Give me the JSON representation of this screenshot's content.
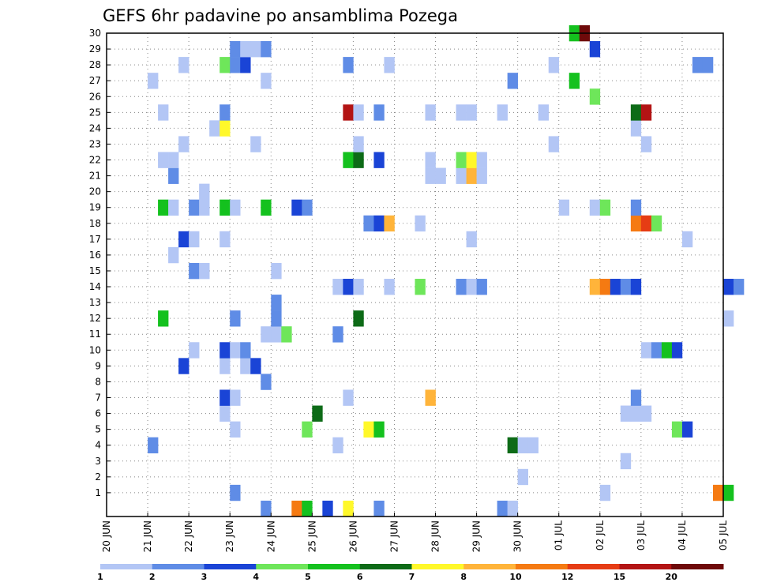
{
  "chart_data": {
    "type": "heatmap",
    "title": "GEFS 6hr padavine po ansamblima Pozega",
    "x_ticks": [
      "20 JUN",
      "21 JUN",
      "22 JUN",
      "23 JUN",
      "24 JUN",
      "25 JUN",
      "26 JUN",
      "27 JUN",
      "28 JUN",
      "29 JUN",
      "30 JUN",
      "01 JUL",
      "02 JUL",
      "03 JUL",
      "04 JUL",
      "05 JUL"
    ],
    "x_range": [
      "20 JUN 00Z",
      "05 JUL 00Z"
    ],
    "y_ticks": [
      "1",
      "2",
      "3",
      "4",
      "5",
      "6",
      "7",
      "8",
      "9",
      "10",
      "11",
      "12",
      "13",
      "14",
      "15",
      "16",
      "17",
      "18",
      "19",
      "20",
      "21",
      "22",
      "23",
      "24",
      "25",
      "26",
      "27",
      "28",
      "29",
      "30"
    ],
    "y_range": [
      0,
      30
    ],
    "grid": true,
    "colorbar": {
      "labels": [
        "1",
        "2",
        "3",
        "4",
        "5",
        "6",
        "7",
        "8",
        "10",
        "12",
        "15",
        "20"
      ],
      "colors": [
        "#b3c6f5",
        "#5f8ce6",
        "#1a44d6",
        "#6ee65a",
        "#14c11e",
        "#0d6b17",
        "#fff82a",
        "#ffb43a",
        "#f57a12",
        "#e63c14",
        "#b31414",
        "#6e0a0a"
      ]
    },
    "cells": [
      {
        "m": 1,
        "t": "23 JUN 00Z",
        "c": 2
      },
      {
        "m": 1,
        "t": "02 JUL 00Z",
        "c": 1
      },
      {
        "m": 1,
        "t": "04 JUL 18Z",
        "c": 9
      },
      {
        "m": 1,
        "t": "05 JUL 00Z",
        "c": 5
      },
      {
        "m": 2,
        "t": "30 JUN 00Z",
        "c": 1
      },
      {
        "m": 3,
        "t": "02 JUL 12Z",
        "c": 1
      },
      {
        "m": 4,
        "t": "21 JUN 00Z",
        "c": 2
      },
      {
        "m": 4,
        "t": "25 JUN 12Z",
        "c": 1
      },
      {
        "m": 4,
        "t": "29 JUN 18Z",
        "c": 6
      },
      {
        "m": 4,
        "t": "30 JUN 00Z",
        "c": 1
      },
      {
        "m": 4,
        "t": "30 JUN 06Z",
        "c": 1
      },
      {
        "m": 5,
        "t": "23 JUN 00Z",
        "c": 1
      },
      {
        "m": 5,
        "t": "24 JUN 18Z",
        "c": 4
      },
      {
        "m": 5,
        "t": "26 JUN 06Z",
        "c": 7
      },
      {
        "m": 5,
        "t": "26 JUN 12Z",
        "c": 5
      },
      {
        "m": 5,
        "t": "03 JUL 18Z",
        "c": 4
      },
      {
        "m": 5,
        "t": "04 JUL 00Z",
        "c": 3
      },
      {
        "m": 6,
        "t": "22 JUN 18Z",
        "c": 1
      },
      {
        "m": 6,
        "t": "25 JUN 00Z",
        "c": 6
      },
      {
        "m": 6,
        "t": "02 JUL 12Z",
        "c": 1
      },
      {
        "m": 6,
        "t": "02 JUL 18Z",
        "c": 1
      },
      {
        "m": 6,
        "t": "03 JUL 00Z",
        "c": 1
      },
      {
        "m": 7,
        "t": "22 JUN 18Z",
        "c": 3
      },
      {
        "m": 7,
        "t": "23 JUN 00Z",
        "c": 1
      },
      {
        "m": 7,
        "t": "25 JUN 18Z",
        "c": 1
      },
      {
        "m": 7,
        "t": "27 JUN 18Z",
        "c": 8
      },
      {
        "m": 7,
        "t": "02 JUL 18Z",
        "c": 2
      },
      {
        "m": 8,
        "t": "23 JUN 18Z",
        "c": 2
      },
      {
        "m": 9,
        "t": "21 JUN 18Z",
        "c": 3
      },
      {
        "m": 9,
        "t": "22 JUN 18Z",
        "c": 1
      },
      {
        "m": 9,
        "t": "23 JUN 06Z",
        "c": 1
      },
      {
        "m": 9,
        "t": "23 JUN 12Z",
        "c": 3
      },
      {
        "m": 10,
        "t": "22 JUN 00Z",
        "c": 1
      },
      {
        "m": 10,
        "t": "22 JUN 18Z",
        "c": 3
      },
      {
        "m": 10,
        "t": "23 JUN 00Z",
        "c": 1
      },
      {
        "m": 10,
        "t": "23 JUN 06Z",
        "c": 2
      },
      {
        "m": 10,
        "t": "03 JUL 00Z",
        "c": 1
      },
      {
        "m": 10,
        "t": "03 JUL 06Z",
        "c": 2
      },
      {
        "m": 10,
        "t": "03 JUL 12Z",
        "c": 5
      },
      {
        "m": 10,
        "t": "03 JUL 18Z",
        "c": 3
      },
      {
        "m": 11,
        "t": "23 JUN 18Z",
        "c": 1
      },
      {
        "m": 11,
        "t": "24 JUN 00Z",
        "c": 1
      },
      {
        "m": 11,
        "t": "24 JUN 06Z",
        "c": 4
      },
      {
        "m": 11,
        "t": "25 JUN 12Z",
        "c": 2
      },
      {
        "m": 12,
        "t": "21 JUN 06Z",
        "c": 5
      },
      {
        "m": 12,
        "t": "23 JUN 00Z",
        "c": 2
      },
      {
        "m": 12,
        "t": "24 JUN 00Z",
        "c": 2
      },
      {
        "m": 12,
        "t": "26 JUN 00Z",
        "c": 6
      },
      {
        "m": 12,
        "t": "05 JUL 00Z",
        "c": 1
      },
      {
        "m": 13,
        "t": "24 JUN 00Z",
        "c": 2
      },
      {
        "m": 14,
        "t": "25 JUN 12Z",
        "c": 1
      },
      {
        "m": 14,
        "t": "25 JUN 18Z",
        "c": 3
      },
      {
        "m": 14,
        "t": "26 JUN 00Z",
        "c": 1
      },
      {
        "m": 14,
        "t": "26 JUN 18Z",
        "c": 1
      },
      {
        "m": 14,
        "t": "27 JUN 12Z",
        "c": 4
      },
      {
        "m": 14,
        "t": "28 JUN 12Z",
        "c": 2
      },
      {
        "m": 14,
        "t": "28 JUN 18Z",
        "c": 1
      },
      {
        "m": 14,
        "t": "29 JUN 00Z",
        "c": 2
      },
      {
        "m": 14,
        "t": "01 JUL 18Z",
        "c": 8
      },
      {
        "m": 14,
        "t": "02 JUL 00Z",
        "c": 9
      },
      {
        "m": 14,
        "t": "02 JUL 06Z",
        "c": 3
      },
      {
        "m": 14,
        "t": "02 JUL 12Z",
        "c": 2
      },
      {
        "m": 14,
        "t": "02 JUL 18Z",
        "c": 3
      },
      {
        "m": 14,
        "t": "05 JUL 00Z",
        "c": 3
      },
      {
        "m": 14,
        "t": "05 JUL 06Z",
        "c": 2
      },
      {
        "m": 15,
        "t": "22 JUN 00Z",
        "c": 2
      },
      {
        "m": 15,
        "t": "22 JUN 06Z",
        "c": 1
      },
      {
        "m": 15,
        "t": "24 JUN 00Z",
        "c": 1
      },
      {
        "m": 16,
        "t": "21 JUN 12Z",
        "c": 1
      },
      {
        "m": 17,
        "t": "21 JUN 18Z",
        "c": 3
      },
      {
        "m": 17,
        "t": "22 JUN 00Z",
        "c": 1
      },
      {
        "m": 17,
        "t": "22 JUN 18Z",
        "c": 1
      },
      {
        "m": 17,
        "t": "28 JUN 18Z",
        "c": 1
      },
      {
        "m": 17,
        "t": "04 JUL 00Z",
        "c": 1
      },
      {
        "m": 18,
        "t": "26 JUN 06Z",
        "c": 2
      },
      {
        "m": 18,
        "t": "26 JUN 12Z",
        "c": 3
      },
      {
        "m": 18,
        "t": "26 JUN 18Z",
        "c": 8
      },
      {
        "m": 18,
        "t": "27 JUN 12Z",
        "c": 1
      },
      {
        "m": 18,
        "t": "02 JUL 18Z",
        "c": 9
      },
      {
        "m": 18,
        "t": "03 JUL 00Z",
        "c": 10
      },
      {
        "m": 18,
        "t": "03 JUL 06Z",
        "c": 4
      },
      {
        "m": 19,
        "t": "21 JUN 06Z",
        "c": 5
      },
      {
        "m": 19,
        "t": "21 JUN 12Z",
        "c": 1
      },
      {
        "m": 19,
        "t": "22 JUN 00Z",
        "c": 2
      },
      {
        "m": 19,
        "t": "22 JUN 06Z",
        "c": 1
      },
      {
        "m": 19,
        "t": "22 JUN 18Z",
        "c": 5
      },
      {
        "m": 19,
        "t": "23 JUN 00Z",
        "c": 1
      },
      {
        "m": 19,
        "t": "23 JUN 18Z",
        "c": 5
      },
      {
        "m": 19,
        "t": "24 JUN 12Z",
        "c": 3
      },
      {
        "m": 19,
        "t": "24 JUN 18Z",
        "c": 2
      },
      {
        "m": 19,
        "t": "01 JUL 00Z",
        "c": 1
      },
      {
        "m": 19,
        "t": "01 JUL 18Z",
        "c": 1
      },
      {
        "m": 19,
        "t": "02 JUL 00Z",
        "c": 4
      },
      {
        "m": 19,
        "t": "02 JUL 18Z",
        "c": 2
      },
      {
        "m": 20,
        "t": "22 JUN 06Z",
        "c": 1
      },
      {
        "m": 21,
        "t": "21 JUN 12Z",
        "c": 2
      },
      {
        "m": 21,
        "t": "27 JUN 18Z",
        "c": 1
      },
      {
        "m": 21,
        "t": "28 JUN 00Z",
        "c": 1
      },
      {
        "m": 21,
        "t": "28 JUN 12Z",
        "c": 1
      },
      {
        "m": 21,
        "t": "28 JUN 18Z",
        "c": 8
      },
      {
        "m": 21,
        "t": "29 JUN 00Z",
        "c": 1
      },
      {
        "m": 22,
        "t": "21 JUN 06Z",
        "c": 1
      },
      {
        "m": 22,
        "t": "21 JUN 12Z",
        "c": 1
      },
      {
        "m": 22,
        "t": "25 JUN 18Z",
        "c": 5
      },
      {
        "m": 22,
        "t": "26 JUN 00Z",
        "c": 6
      },
      {
        "m": 22,
        "t": "26 JUN 12Z",
        "c": 3
      },
      {
        "m": 22,
        "t": "27 JUN 18Z",
        "c": 1
      },
      {
        "m": 22,
        "t": "28 JUN 12Z",
        "c": 4
      },
      {
        "m": 22,
        "t": "28 JUN 18Z",
        "c": 7
      },
      {
        "m": 22,
        "t": "29 JUN 00Z",
        "c": 1
      },
      {
        "m": 23,
        "t": "21 JUN 18Z",
        "c": 1
      },
      {
        "m": 23,
        "t": "23 JUN 12Z",
        "c": 1
      },
      {
        "m": 23,
        "t": "26 JUN 00Z",
        "c": 1
      },
      {
        "m": 23,
        "t": "30 JUN 18Z",
        "c": 1
      },
      {
        "m": 23,
        "t": "03 JUL 00Z",
        "c": 1
      },
      {
        "m": 24,
        "t": "22 JUN 12Z",
        "c": 1
      },
      {
        "m": 24,
        "t": "22 JUN 18Z",
        "c": 7
      },
      {
        "m": 24,
        "t": "02 JUL 18Z",
        "c": 1
      },
      {
        "m": 25,
        "t": "21 JUN 06Z",
        "c": 1
      },
      {
        "m": 25,
        "t": "22 JUN 18Z",
        "c": 2
      },
      {
        "m": 25,
        "t": "25 JUN 18Z",
        "c": 11
      },
      {
        "m": 25,
        "t": "26 JUN 00Z",
        "c": 1
      },
      {
        "m": 25,
        "t": "26 JUN 12Z",
        "c": 2
      },
      {
        "m": 25,
        "t": "27 JUN 18Z",
        "c": 1
      },
      {
        "m": 25,
        "t": "28 JUN 12Z",
        "c": 1
      },
      {
        "m": 25,
        "t": "28 JUN 18Z",
        "c": 1
      },
      {
        "m": 25,
        "t": "29 JUN 12Z",
        "c": 1
      },
      {
        "m": 25,
        "t": "30 JUN 12Z",
        "c": 1
      },
      {
        "m": 25,
        "t": "02 JUL 18Z",
        "c": 6
      },
      {
        "m": 25,
        "t": "03 JUL 00Z",
        "c": 11
      },
      {
        "m": 26,
        "t": "01 JUL 18Z",
        "c": 4
      },
      {
        "m": 27,
        "t": "21 JUN 00Z",
        "c": 1
      },
      {
        "m": 27,
        "t": "23 JUN 18Z",
        "c": 1
      },
      {
        "m": 27,
        "t": "29 JUN 18Z",
        "c": 2
      },
      {
        "m": 27,
        "t": "01 JUL 06Z",
        "c": 5
      },
      {
        "m": 28,
        "t": "21 JUN 18Z",
        "c": 1
      },
      {
        "m": 28,
        "t": "22 JUN 18Z",
        "c": 4
      },
      {
        "m": 28,
        "t": "23 JUN 00Z",
        "c": 2
      },
      {
        "m": 28,
        "t": "23 JUN 06Z",
        "c": 3
      },
      {
        "m": 28,
        "t": "25 JUN 18Z",
        "c": 2
      },
      {
        "m": 28,
        "t": "26 JUN 18Z",
        "c": 1
      },
      {
        "m": 28,
        "t": "30 JUN 18Z",
        "c": 1
      },
      {
        "m": 28,
        "t": "04 JUL 06Z",
        "c": 2
      },
      {
        "m": 28,
        "t": "04 JUL 12Z",
        "c": 2
      },
      {
        "m": 29,
        "t": "23 JUN 00Z",
        "c": 2
      },
      {
        "m": 29,
        "t": "23 JUN 06Z",
        "c": 1
      },
      {
        "m": 29,
        "t": "23 JUN 12Z",
        "c": 1
      },
      {
        "m": 29,
        "t": "23 JUN 18Z",
        "c": 2
      },
      {
        "m": 29,
        "t": "01 JUL 18Z",
        "c": 3
      },
      {
        "m": 30,
        "t": "01 JUL 06Z",
        "c": 5
      },
      {
        "m": 30,
        "t": "01 JUL 12Z",
        "c": 12
      },
      {
        "m": 0,
        "t": "23 JUN 18Z",
        "c": 2
      },
      {
        "m": 0,
        "t": "24 JUN 12Z",
        "c": 9
      },
      {
        "m": 0,
        "t": "24 JUN 18Z",
        "c": 5
      },
      {
        "m": 0,
        "t": "25 JUN 06Z",
        "c": 3
      },
      {
        "m": 0,
        "t": "25 JUN 18Z",
        "c": 7
      },
      {
        "m": 0,
        "t": "26 JUN 12Z",
        "c": 2
      },
      {
        "m": 0,
        "t": "29 JUN 12Z",
        "c": 2
      },
      {
        "m": 0,
        "t": "29 JUN 18Z",
        "c": 1
      }
    ]
  }
}
